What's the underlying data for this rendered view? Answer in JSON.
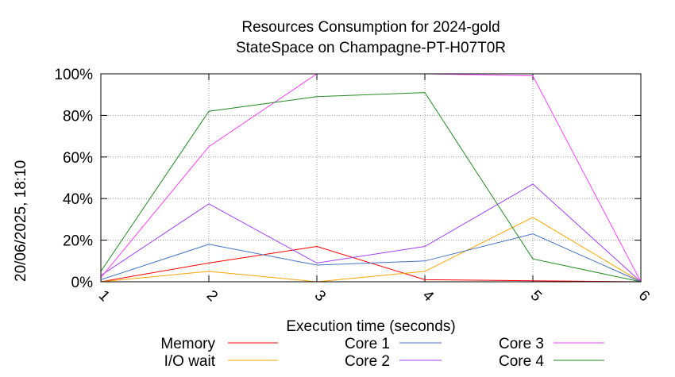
{
  "chart_data": {
    "type": "line",
    "title": "Resources Consumption for 2024-gold",
    "subtitle": "StateSpace on Champagne-PT-H07T0R",
    "xlabel": "Execution time (seconds)",
    "ylabel": "",
    "side_label": "20/06/2025, 18:10",
    "xlim": [
      1,
      6
    ],
    "ylim": [
      0,
      100
    ],
    "x_ticks": [
      "1",
      "2",
      "3",
      "4",
      "5",
      "6"
    ],
    "y_ticks": [
      "0%",
      "20%",
      "40%",
      "60%",
      "80%",
      "100%"
    ],
    "grid": true,
    "legend_position": "bottom",
    "x": [
      1,
      2,
      3,
      4,
      5,
      6
    ],
    "series": [
      {
        "name": "Memory",
        "color": "#ff0000",
        "values": [
          0,
          9,
          17,
          1,
          0.5,
          0
        ]
      },
      {
        "name": "I/O wait",
        "color": "#ffa500",
        "values": [
          0,
          5,
          0,
          5,
          31,
          0
        ]
      },
      {
        "name": "Core 1",
        "color": "#4472c4",
        "values": [
          1,
          18,
          8,
          10,
          23,
          0
        ]
      },
      {
        "name": "Core 2",
        "color": "#a040ff",
        "values": [
          3,
          37.5,
          9,
          17,
          47,
          0
        ]
      },
      {
        "name": "Core 3",
        "color": "#ff40ff",
        "values": [
          2,
          65,
          100,
          100,
          99,
          0
        ]
      },
      {
        "name": "Core 4",
        "color": "#228b22",
        "values": [
          5,
          82,
          89,
          91,
          11,
          0
        ]
      }
    ]
  }
}
